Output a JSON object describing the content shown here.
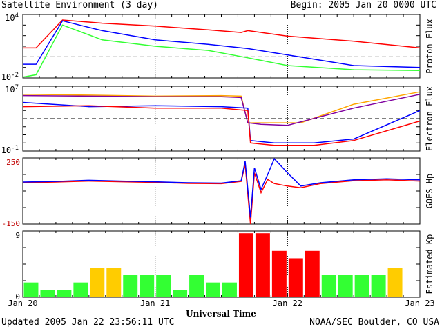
{
  "header": {
    "title": "Satellite Environment (3 day)",
    "begin": "Begin:  2005 Jan 20 0000 UTC"
  },
  "footer": {
    "updated": "Updated 2005 Jan 22 23:56:11 UTC",
    "source": "NOAA/SEC Boulder, CO USA"
  },
  "colors": {
    "red": "#ff0000",
    "blue": "#0000ff",
    "green": "#33ff33",
    "orange": "#ffa500",
    "purple": "#8000a0",
    "kp_yellow": "#ffcc00"
  },
  "chart_data": [
    {
      "type": "line",
      "ylabel": "Proton Flux",
      "yscale": "log",
      "ylim_exp": [
        -2,
        4
      ],
      "ytick_labels": [
        {
          "base": "10",
          "exp": "4"
        },
        {
          "base": "10",
          "exp": "-2"
        }
      ],
      "threshold": 1,
      "series": [
        {
          "color": "red",
          "x": [
            0,
            0.1,
            0.3,
            0.6,
            1.0,
            1.4,
            1.65,
            1.7,
            2.0,
            2.5,
            3.0
          ],
          "y": [
            7,
            7,
            3000,
            1500,
            800,
            350,
            200,
            300,
            90,
            30,
            7
          ]
        },
        {
          "color": "blue",
          "x": [
            0,
            0.1,
            0.3,
            0.6,
            1.0,
            1.4,
            1.7,
            2.0,
            2.5,
            3.0
          ],
          "y": [
            0.2,
            0.2,
            2500,
            300,
            40,
            15,
            6,
            1.5,
            0.15,
            0.1
          ]
        },
        {
          "color": "green",
          "x": [
            0,
            0.1,
            0.3,
            0.6,
            1.0,
            1.4,
            1.7,
            2.0,
            2.5,
            3.0
          ],
          "y": [
            0.012,
            0.02,
            1000,
            40,
            10,
            4,
            0.8,
            0.15,
            0.06,
            0.05
          ]
        }
      ]
    },
    {
      "type": "line",
      "ylabel": "Electron Flux",
      "yscale": "log",
      "ylim_exp": [
        -1,
        7
      ],
      "ytick_labels": [
        {
          "base": "10",
          "exp": "7"
        },
        {
          "base": "10",
          "exp": "-1"
        }
      ],
      "threshold": 1000,
      "series": [
        {
          "color": "orange",
          "x": [
            0,
            0.5,
            1.0,
            1.5,
            1.65,
            1.7,
            1.9,
            2.1,
            2.5,
            3.0
          ],
          "y": [
            1000000,
            800000,
            600000,
            700000,
            600000,
            300,
            300,
            300,
            60000,
            2000000
          ]
        },
        {
          "color": "purple",
          "x": [
            0,
            0.5,
            1.0,
            1.5,
            1.65,
            1.7,
            1.8,
            2.0,
            2.5,
            3.0
          ],
          "y": [
            700000,
            600000,
            500000,
            500000,
            400000,
            300,
            200,
            150,
            20000,
            1000000
          ]
        },
        {
          "color": "blue",
          "x": [
            0,
            0.5,
            1.0,
            1.5,
            1.7,
            1.72,
            1.9,
            2.2,
            2.5,
            3.0
          ],
          "y": [
            100000,
            30000,
            40000,
            30000,
            20000,
            2,
            1,
            1,
            3,
            10000
          ]
        },
        {
          "color": "red",
          "x": [
            0,
            0.5,
            1.0,
            1.5,
            1.7,
            1.72,
            1.9,
            2.2,
            2.5,
            3.0
          ],
          "y": [
            30000,
            40000,
            20000,
            20000,
            10000,
            1,
            0.5,
            0.5,
            2,
            500
          ]
        }
      ]
    },
    {
      "type": "line",
      "ylabel": "GOES Hp",
      "ylim": [
        -150,
        250
      ],
      "ytick_labels": [
        "250",
        "-150"
      ],
      "series": [
        {
          "color": "red",
          "x": [
            0,
            0.25,
            0.5,
            0.75,
            1.0,
            1.25,
            1.5,
            1.65,
            1.68,
            1.72,
            1.75,
            1.8,
            1.85,
            1.9,
            2.0,
            2.1,
            2.25,
            2.5,
            2.75,
            3.0
          ],
          "y": [
            100,
            104,
            110,
            106,
            102,
            96,
            94,
            108,
            210,
            -150,
            160,
            40,
            120,
            95,
            80,
            70,
            95,
            112,
            118,
            110
          ]
        },
        {
          "color": "blue",
          "x": [
            0,
            0.25,
            0.5,
            0.75,
            1.0,
            1.25,
            1.5,
            1.65,
            1.68,
            1.72,
            1.75,
            1.8,
            1.85,
            1.9,
            2.0,
            2.1,
            2.25,
            2.5,
            2.75,
            3.0
          ],
          "y": [
            104,
            108,
            115,
            110,
            106,
            100,
            98,
            112,
            230,
            -110,
            190,
            60,
            150,
            245,
            160,
            80,
            100,
            118,
            124,
            118
          ]
        }
      ]
    },
    {
      "type": "bar",
      "ylabel": "Estimated Kp",
      "ylim": [
        0,
        9
      ],
      "ytick_labels": [
        "9",
        "0"
      ],
      "values": [
        2,
        1,
        1,
        2,
        4,
        4,
        3,
        3,
        3,
        1,
        3,
        2,
        2,
        8.7,
        8.7,
        6.3,
        5.3,
        6.3,
        3,
        3,
        3,
        3,
        4
      ],
      "level_colors": {
        "green_below": 4,
        "yellow_below": 5
      }
    }
  ],
  "x_axis": {
    "title": "Universal Time",
    "tick_labels": [
      "Jan 20",
      "Jan 21",
      "Jan 22",
      "Jan 23"
    ],
    "xlim": [
      0,
      3
    ]
  }
}
